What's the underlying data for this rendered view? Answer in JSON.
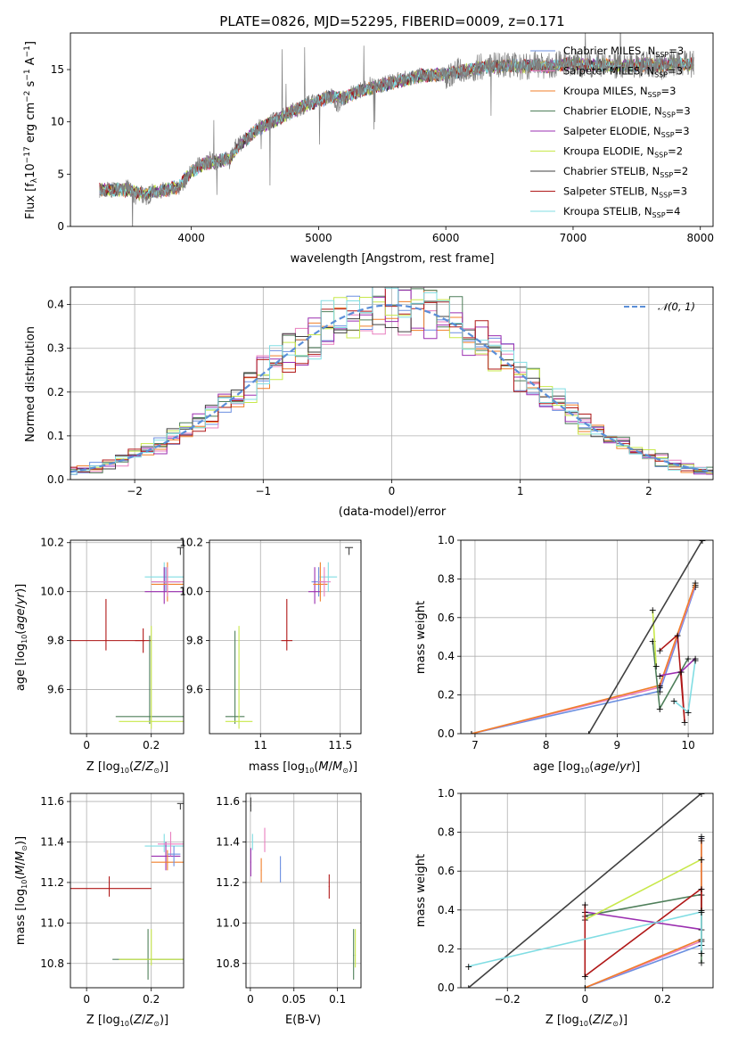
{
  "chart_data": [
    {
      "id": "spectrum",
      "type": "line",
      "title": "PLATE=0826, MJD=52295, FIBERID=0009, z=0.171",
      "xlabel": "wavelength [Angstrom, rest frame]",
      "ylabel_parts": [
        "Flux [f",
        "λ",
        "10",
        "−17",
        " erg cm",
        "−2",
        " s",
        "−1",
        " A",
        "−1",
        "]"
      ],
      "xlim": [
        3050,
        8100
      ],
      "ylim": [
        0,
        18.5
      ],
      "xticks": [
        4000,
        5000,
        6000,
        7000,
        8000
      ],
      "yticks": [
        0,
        5,
        10,
        15
      ],
      "data_color": "#808080",
      "data_points": [
        [
          3280,
          3.4
        ],
        [
          3350,
          3.6
        ],
        [
          3420,
          3.3
        ],
        [
          3480,
          3.9
        ],
        [
          3520,
          3.5
        ],
        [
          3560,
          2.7
        ],
        [
          3600,
          3.2
        ],
        [
          3650,
          2.6
        ],
        [
          3700,
          3.4
        ],
        [
          3750,
          3.1
        ],
        [
          3800,
          3.8
        ],
        [
          3850,
          3.3
        ],
        [
          3900,
          3.6
        ],
        [
          3950,
          4.4
        ],
        [
          4000,
          5.2
        ],
        [
          4050,
          6.1
        ],
        [
          4100,
          5.9
        ],
        [
          4150,
          6.5
        ],
        [
          4200,
          6.0
        ],
        [
          4250,
          6.4
        ],
        [
          4300,
          6.2
        ],
        [
          4350,
          7.7
        ],
        [
          4400,
          8.0
        ],
        [
          4450,
          8.6
        ],
        [
          4500,
          9.2
        ],
        [
          4550,
          9.7
        ],
        [
          4600,
          9.9
        ],
        [
          4650,
          10.2
        ],
        [
          4700,
          10.5
        ],
        [
          4750,
          10.8
        ],
        [
          4800,
          11.3
        ],
        [
          4850,
          11.0
        ],
        [
          4900,
          11.7
        ],
        [
          4950,
          11.9
        ],
        [
          5000,
          12.1
        ],
        [
          5050,
          12.3
        ],
        [
          5100,
          12.5
        ],
        [
          5150,
          11.6
        ],
        [
          5200,
          12.3
        ],
        [
          5250,
          12.7
        ],
        [
          5300,
          12.9
        ],
        [
          5400,
          13.3
        ],
        [
          5500,
          13.6
        ],
        [
          5600,
          13.9
        ],
        [
          5700,
          14.2
        ],
        [
          5800,
          14.5
        ],
        [
          5900,
          14.6
        ],
        [
          6000,
          14.4
        ],
        [
          6100,
          14.9
        ],
        [
          6200,
          15.1
        ],
        [
          6300,
          15.3
        ],
        [
          6400,
          15.4
        ],
        [
          6500,
          15.5
        ],
        [
          6600,
          15.2
        ],
        [
          6700,
          15.5
        ],
        [
          6800,
          15.3
        ],
        [
          6900,
          15.6
        ],
        [
          7000,
          15.7
        ],
        [
          7100,
          15.4
        ],
        [
          7200,
          15.6
        ],
        [
          7300,
          15.3
        ],
        [
          7400,
          15.5
        ],
        [
          7500,
          15.4
        ],
        [
          7600,
          15.6
        ],
        [
          7700,
          15.3
        ],
        [
          7800,
          15.7
        ],
        [
          7900,
          15.5
        ]
      ],
      "model_points": [
        [
          3280,
          3.5
        ],
        [
          3400,
          3.5
        ],
        [
          3500,
          3.5
        ],
        [
          3600,
          3.1
        ],
        [
          3700,
          3.3
        ],
        [
          3800,
          3.5
        ],
        [
          3900,
          3.8
        ],
        [
          4000,
          5.2
        ],
        [
          4100,
          6.0
        ],
        [
          4200,
          6.2
        ],
        [
          4300,
          6.5
        ],
        [
          4400,
          8.0
        ],
        [
          4500,
          9.1
        ],
        [
          4600,
          9.8
        ],
        [
          4700,
          10.4
        ],
        [
          4800,
          11.0
        ],
        [
          4900,
          11.6
        ],
        [
          5000,
          12.0
        ],
        [
          5100,
          12.4
        ],
        [
          5200,
          12.3
        ],
        [
          5300,
          12.8
        ],
        [
          5400,
          13.2
        ],
        [
          5500,
          13.5
        ],
        [
          5600,
          13.8
        ],
        [
          5700,
          14.1
        ],
        [
          5800,
          14.4
        ],
        [
          5900,
          14.5
        ],
        [
          6000,
          14.5
        ],
        [
          6100,
          14.8
        ],
        [
          6200,
          15.0
        ],
        [
          6300,
          15.2
        ],
        [
          6400,
          15.3
        ],
        [
          6500,
          15.4
        ],
        [
          6600,
          15.3
        ],
        [
          6700,
          15.4
        ],
        [
          6800,
          15.3
        ],
        [
          6900,
          15.5
        ],
        [
          7000,
          15.6
        ],
        [
          7100,
          15.4
        ],
        [
          7200,
          15.5
        ],
        [
          7300,
          15.4
        ],
        [
          7400,
          15.4
        ],
        [
          7500,
          15.4
        ],
        [
          7600,
          15.5
        ],
        [
          7700,
          15.4
        ],
        [
          7800,
          15.6
        ],
        [
          7900,
          15.5
        ]
      ],
      "legend_loc": "upper right",
      "series": [
        {
          "imf": "Chabrier",
          "lib": "MILES",
          "n": "3",
          "color": "#6b8fe0"
        },
        {
          "imf": "Salpeter",
          "lib": "MILES",
          "n": "3",
          "color": "#e87fbf"
        },
        {
          "imf": "Kroupa",
          "lib": "MILES",
          "n": "3",
          "color": "#f07f2a"
        },
        {
          "imf": "Chabrier",
          "lib": "ELODIE",
          "n": "3",
          "color": "#4f7f5a"
        },
        {
          "imf": "Salpeter",
          "lib": "ELODIE",
          "n": "3",
          "color": "#9b2fb0"
        },
        {
          "imf": "Kroupa",
          "lib": "ELODIE",
          "n": "2",
          "color": "#c8e84a"
        },
        {
          "imf": "Chabrier",
          "lib": "STELIB",
          "n": "2",
          "color": "#404040"
        },
        {
          "imf": "Salpeter",
          "lib": "STELIB",
          "n": "3",
          "color": "#b01818"
        },
        {
          "imf": "Kroupa",
          "lib": "STELIB",
          "n": "4",
          "color": "#80dde3"
        }
      ],
      "legend_ssp": "SSP"
    },
    {
      "id": "residuals",
      "type": "histogram",
      "xlabel": "(data-model)/error",
      "ylabel": "Normed distribution",
      "xlim": [
        -2.5,
        2.5
      ],
      "ylim": [
        0,
        0.44
      ],
      "xticks": [
        -2,
        -1,
        0,
        1,
        2
      ],
      "yticks": [
        0.0,
        0.1,
        0.2,
        0.3,
        0.4
      ],
      "bin_width": 0.1,
      "gaussian_label": "𝒩(0, 1)",
      "gaussian_color": "#5b8fd8",
      "grid": true
    },
    {
      "id": "age_vs_Z",
      "type": "scatter",
      "xlabel": "Z [log10(Z/Z⊙)]",
      "ylabel": "age  [log10(age/yr)]",
      "xlim": [
        -0.05,
        0.3
      ],
      "ylim": [
        9.42,
        10.21
      ],
      "xticks": [
        0.0,
        0.2
      ],
      "yticks": [
        9.6,
        9.8,
        10.0,
        10.2
      ]
    },
    {
      "id": "age_vs_mass",
      "type": "scatter",
      "xlabel": "mass [log10(M/M⊙)]",
      "ylabel": "",
      "xlim": [
        10.68,
        11.63
      ],
      "ylim": [
        9.42,
        10.21
      ],
      "xticks": [
        11.0,
        11.5
      ],
      "yticks": [
        9.6,
        9.8,
        10.0,
        10.2
      ]
    },
    {
      "id": "weight_vs_age",
      "type": "line",
      "xlabel": "age  [log10(age/yr)]",
      "ylabel": "mass weight",
      "xlim": [
        6.8,
        10.35
      ],
      "ylim": [
        0,
        1
      ],
      "xticks": [
        7,
        8,
        9,
        10
      ],
      "yticks": [
        0.0,
        0.2,
        0.4,
        0.6,
        0.8,
        1.0
      ]
    },
    {
      "id": "mass_vs_Z",
      "type": "scatter",
      "xlabel": "Z [log10(Z/Z⊙)]",
      "ylabel": "mass [log10(M/M⊙)]",
      "xlim": [
        -0.05,
        0.3
      ],
      "ylim": [
        10.68,
        11.64
      ],
      "xticks": [
        0.0,
        0.2
      ],
      "yticks": [
        10.8,
        11.0,
        11.2,
        11.4,
        11.6
      ]
    },
    {
      "id": "mass_vs_ebv",
      "type": "scatter",
      "xlabel": "E(B-V)",
      "ylabel": "",
      "xlim": [
        -0.005,
        0.127
      ],
      "ylim": [
        10.68,
        11.64
      ],
      "xticks": [
        0.0,
        0.05,
        0.1
      ],
      "yticks": [
        10.8,
        11.0,
        11.2,
        11.4,
        11.6
      ]
    },
    {
      "id": "weight_vs_Z",
      "type": "line",
      "xlabel": "Z [log10(Z/Z⊙)]",
      "ylabel": "mass weight",
      "xlim": [
        -0.32,
        0.33
      ],
      "ylim": [
        0,
        1
      ],
      "xticks": [
        -0.2,
        0.0,
        0.2
      ],
      "yticks": [
        0.0,
        0.2,
        0.4,
        0.6,
        0.8,
        1.0
      ]
    }
  ]
}
